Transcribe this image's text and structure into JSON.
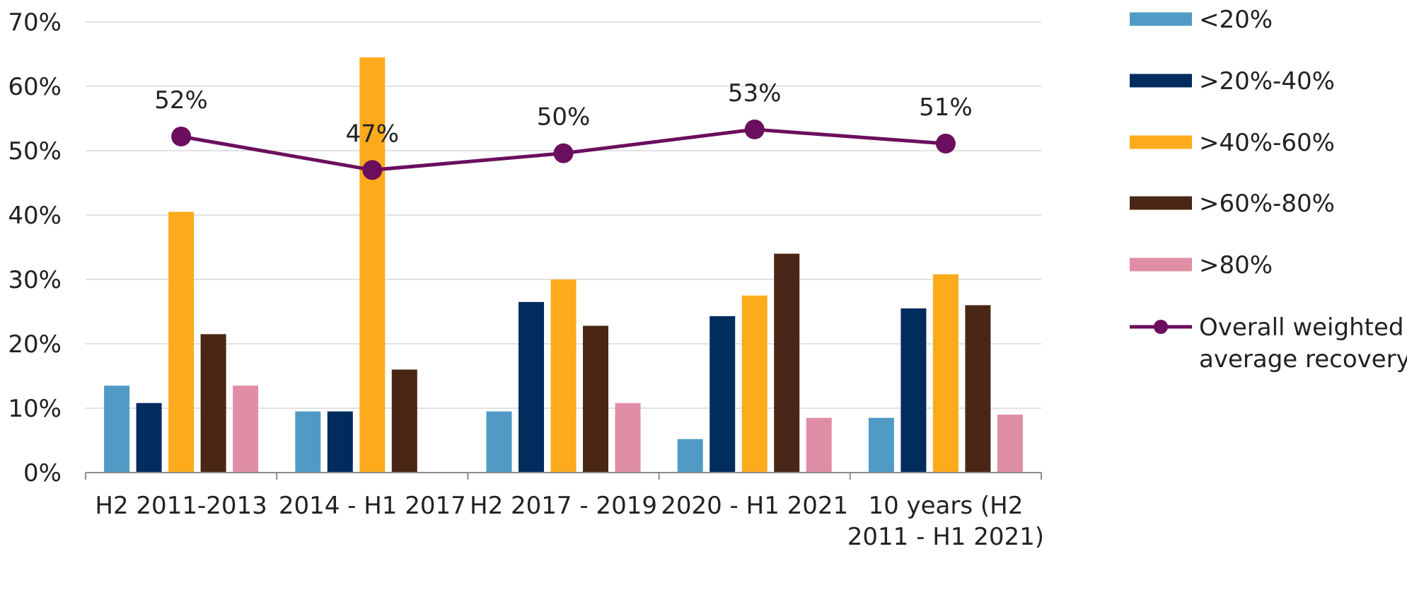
{
  "chart_data": {
    "type": "bar",
    "categories": [
      [
        "H2 2011-2013"
      ],
      [
        "2014 - H1 2017"
      ],
      [
        "H2 2017 - 2019"
      ],
      [
        "2020 - H1 2021"
      ],
      [
        "10 years (H2",
        "2011 - H1 2021)"
      ]
    ],
    "series": [
      {
        "name": "<20%",
        "color": "#4f9bc6",
        "values": [
          13.5,
          9.5,
          9.5,
          5.2,
          8.5
        ]
      },
      {
        "name": ">20%-40%",
        "color": "#002d5e",
        "values": [
          10.8,
          9.5,
          26.5,
          24.3,
          25.5
        ]
      },
      {
        "name": ">40%-60%",
        "color": "#fdab1c",
        "values": [
          40.5,
          64.5,
          30.0,
          27.5,
          30.8
        ]
      },
      {
        "name": ">60%-80%",
        "color": "#4a2616",
        "values": [
          21.5,
          16.0,
          22.8,
          34.0,
          26.0
        ]
      },
      {
        "name": ">80%",
        "color": "#e08ea5",
        "values": [
          13.5,
          null,
          10.8,
          8.5,
          9.0
        ]
      }
    ],
    "line_series": {
      "name": [
        "Overall weighted",
        "average recovery"
      ],
      "color": "#6b0e5e",
      "values": [
        52.2,
        47.0,
        49.6,
        53.3,
        51.1
      ],
      "labels": [
        "52%",
        "47%",
        "50%",
        "53%",
        "51%"
      ]
    },
    "y_ticks": [
      "0%",
      "10%",
      "20%",
      "30%",
      "40%",
      "50%",
      "60%",
      "70%"
    ],
    "ylim": [
      0,
      70
    ],
    "grid": true,
    "legend_position": "right"
  }
}
